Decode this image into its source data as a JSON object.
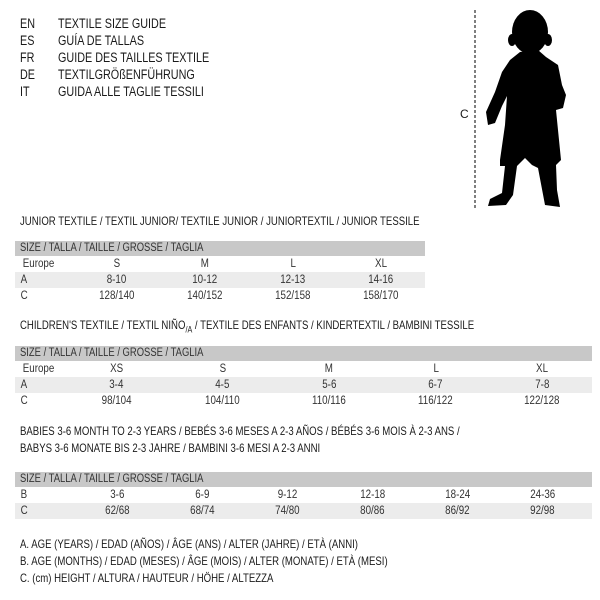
{
  "header": {
    "languages": [
      {
        "code": "EN",
        "title": "TEXTILE SIZE GUIDE"
      },
      {
        "code": "ES",
        "title": "GUÍA DE TALLAS"
      },
      {
        "code": "FR",
        "title": "GUIDE DES TAILLES TEXTILE"
      },
      {
        "code": "DE",
        "title": "TEXTILGRÖßENFÜHRUNG"
      },
      {
        "code": "IT",
        "title": "GUIDA ALLE TAGLIE TESSILI"
      }
    ]
  },
  "figure": {
    "measure_label": "C",
    "icon": "child-silhouette"
  },
  "junior": {
    "title": "JUNIOR TEXTILE / TEXTIL JUNIOR/ TEXTILE JUNIOR / JUNIORTEXTIL / JUNIOR TESSILE",
    "header": "SIZE / TALLA / TAILLE / GRÖSSE / TAGLIA",
    "rows": [
      {
        "label": "Europe",
        "values": [
          "S",
          "M",
          "L",
          "XL"
        ]
      },
      {
        "label": "A",
        "values": [
          "8-10",
          "10-12",
          "12-13",
          "14-16"
        ]
      },
      {
        "label": "C",
        "values": [
          "128/140",
          "140/152",
          "152/158",
          "158/170"
        ]
      }
    ]
  },
  "children": {
    "title": "CHILDREN'S TEXTILE / TEXTIL NIÑO/A / TEXTILE DES ENFANTS / KINDERTEXTIL / BAMBINI TESSILE",
    "header": "SIZE / TALLA / TAILLE / GRÖSSE / TAGLIA",
    "rows": [
      {
        "label": "Europe",
        "values": [
          "XS",
          "S",
          "M",
          "L",
          "XL"
        ]
      },
      {
        "label": "A",
        "values": [
          "3-4",
          "4-5",
          "5-6",
          "6-7",
          "7-8"
        ]
      },
      {
        "label": "C",
        "values": [
          "98/104",
          "104/110",
          "110/116",
          "116/122",
          "122/128"
        ]
      }
    ]
  },
  "babies": {
    "title_line1": "BABIES 3-6 MONTH TO 2-3 YEARS / BEBÉS 3-6 MESES A 2-3 AÑOS / BÉBÉS 3-6 MOIS À 2-3 ANS /",
    "title_line2": "BABYS 3-6 MONATE BIS 2-3 JAHRE / BAMBINI 3-6 MESI A 2-3 ANNI",
    "header": "SIZE / TALLA / TAILLE / GRÖSSE / TAGLIA",
    "rows": [
      {
        "label": "B",
        "values": [
          "3-6",
          "6-9",
          "9-12",
          "12-18",
          "18-24",
          "24-36"
        ]
      },
      {
        "label": "C",
        "values": [
          "62/68",
          "68/74",
          "74/80",
          "80/86",
          "86/92",
          "92/98"
        ]
      }
    ]
  },
  "legend": [
    "A. AGE (YEARS) / EDAD (AÑOS) / ÂGE (ANS) / ALTER (JAHRE) / ETÀ (ANNI)",
    "B. AGE (MONTHS) / EDAD (MESES) / ÂGE (MOIS) / ALTER (MONATE) / ETÀ (MESI)",
    "C. (cm) HEIGHT / ALTURA / HAUTEUR / HÖHE / ALTEZZA"
  ]
}
